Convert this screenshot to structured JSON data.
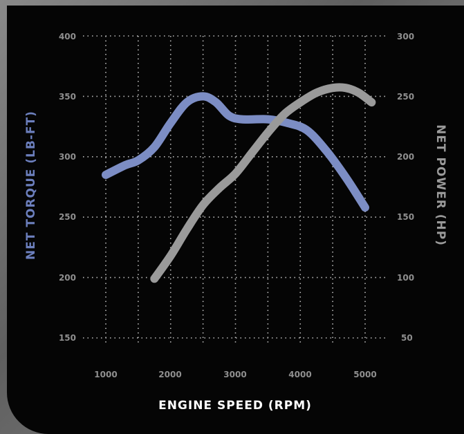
{
  "chart_data": {
    "type": "line",
    "xlabel": "ENGINE SPEED (RPM)",
    "ylabel_left": "NET TORQUE (LB-FT)",
    "ylabel_right": "NET POWER (HP)",
    "x_ticks": [
      "1000",
      "2000",
      "3000",
      "4000",
      "5000"
    ],
    "y_left_ticks": [
      "400",
      "350",
      "300",
      "250",
      "200",
      "150"
    ],
    "y_right_ticks": [
      "300",
      "250",
      "200",
      "150",
      "100",
      "50"
    ],
    "xlim": [
      1000,
      5000
    ],
    "ylim_left": [
      150,
      400
    ],
    "ylim_right": [
      50,
      300
    ],
    "grid": true,
    "series": [
      {
        "axis": "left",
        "color": "#7c8dc4",
        "points": [
          [
            1000,
            285
          ],
          [
            1300,
            293
          ],
          [
            1500,
            297
          ],
          [
            1750,
            308
          ],
          [
            2000,
            328
          ],
          [
            2250,
            345
          ],
          [
            2500,
            350
          ],
          [
            2700,
            345
          ],
          [
            2900,
            334
          ],
          [
            3100,
            331
          ],
          [
            3500,
            331
          ],
          [
            3800,
            328
          ],
          [
            4100,
            322
          ],
          [
            4400,
            305
          ],
          [
            4700,
            283
          ],
          [
            5000,
            258
          ]
        ]
      },
      {
        "axis": "right",
        "color": "#9a9a9a",
        "points": [
          [
            1750,
            99
          ],
          [
            2000,
            118
          ],
          [
            2250,
            140
          ],
          [
            2500,
            160
          ],
          [
            2750,
            174
          ],
          [
            3000,
            186
          ],
          [
            3250,
            203
          ],
          [
            3500,
            220
          ],
          [
            3750,
            235
          ],
          [
            4000,
            245
          ],
          [
            4250,
            253
          ],
          [
            4500,
            257
          ],
          [
            4700,
            257
          ],
          [
            4900,
            253
          ],
          [
            5100,
            245
          ]
        ]
      }
    ]
  }
}
